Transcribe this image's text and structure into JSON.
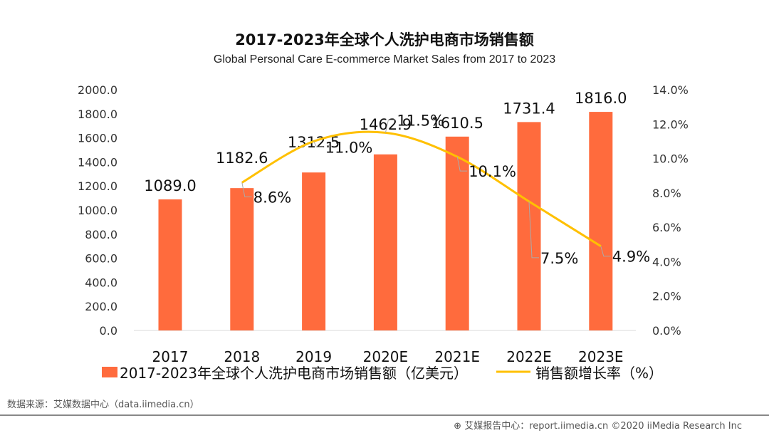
{
  "chart_data": {
    "type": "bar",
    "title": "2017-2023年全球个人洗护电商市场销售额",
    "subtitle": "Global Personal Care E-commerce Market Sales from 2017 to 2023",
    "categories": [
      "2017",
      "2018",
      "2019",
      "2020E",
      "2021E",
      "2022E",
      "2023E"
    ],
    "series": [
      {
        "name": "2017-2023年全球个人洗护电商市场销售额（亿美元）",
        "type": "bar",
        "axis": "left",
        "color": "#FF6B3D",
        "values": [
          1089.0,
          1182.6,
          1312.5,
          1462.9,
          1610.5,
          1731.4,
          1816.0
        ],
        "labels": [
          "1089.0",
          "1182.6",
          "1312.5",
          "1462.9",
          "1610.5",
          "1731.4",
          "1816.0"
        ]
      },
      {
        "name": "销售额增长率（%）",
        "type": "line",
        "axis": "right",
        "color": "#FFC000",
        "smooth": true,
        "values": [
          null,
          8.6,
          11.0,
          11.5,
          10.1,
          7.5,
          4.9
        ],
        "labels": [
          "",
          "8.6%",
          "11.0%",
          "11.5%",
          "10.1%",
          "7.5%",
          "4.9%"
        ]
      }
    ],
    "ylim": [
      0,
      2000
    ],
    "y_ticks": [
      "0.0",
      "200.0",
      "400.0",
      "600.0",
      "800.0",
      "1000.0",
      "1200.0",
      "1400.0",
      "1600.0",
      "1800.0",
      "2000.0"
    ],
    "y2lim": [
      0,
      14
    ],
    "y2_ticks": [
      "0.0%",
      "2.0%",
      "4.0%",
      "6.0%",
      "8.0%",
      "10.0%",
      "12.0%",
      "14.0%"
    ],
    "grid": false,
    "legend": "bottom"
  },
  "source": "数据来源：艾媒数据中心（data.iimedia.cn）",
  "footer": "艾媒报告中心：report.iimedia.cn   ©2020  iiMedia Research  Inc"
}
